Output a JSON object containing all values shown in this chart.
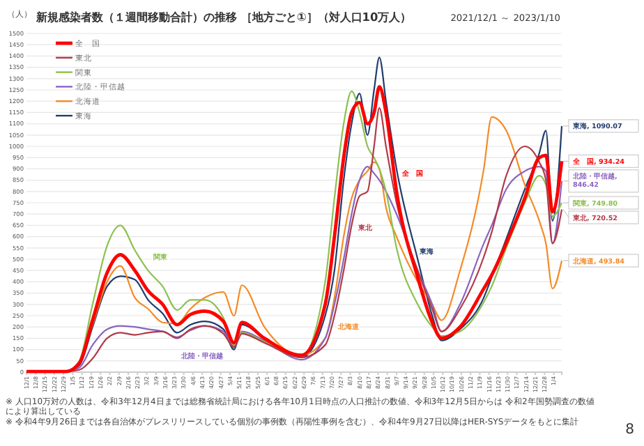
{
  "chart_data": {
    "type": "line",
    "title": "新規感染者数（１週間移動合計）の推移 ［地方ごと①］（対人口10万人）",
    "subtitle": "2021/12/1 ～ 2023/1/10",
    "ylabel": "（人）",
    "x": [
      "2021-12-01",
      "2021-12-31",
      "2022-01-10",
      "2022-01-20",
      "2022-01-31",
      "2022-02-10",
      "2022-02-21",
      "2022-03-03",
      "2022-03-14",
      "2022-03-25",
      "2022-04-04",
      "2022-04-15",
      "2022-04-29",
      "2022-05-07",
      "2022-05-13",
      "2022-05-30",
      "2022-06-27",
      "2022-07-15",
      "2022-07-22",
      "2022-07-29",
      "2022-08-04",
      "2022-08-10",
      "2022-08-16",
      "2022-08-21",
      "2022-08-25",
      "2022-08-30",
      "2022-09-07",
      "2022-09-23",
      "2022-10-04",
      "2022-10-11",
      "2022-10-25",
      "2022-11-12",
      "2022-11-18",
      "2022-11-29",
      "2022-12-13",
      "2022-12-24",
      "2022-12-29",
      "2023-01-03",
      "2023-01-10"
    ],
    "series": [
      {
        "name": "全　国",
        "color": "#ff0000",
        "values": [
          3,
          3,
          40,
          230,
          440,
          520,
          450,
          360,
          300,
          210,
          255,
          270,
          225,
          130,
          220,
          150,
          75,
          300,
          600,
          950,
          1150,
          1194,
          1100,
          1150,
          1264,
          1150,
          800,
          420,
          220,
          150,
          200,
          370,
          430,
          570,
          770,
          950,
          960,
          710,
          934.24
        ],
        "value_labels": [
          null,
          null,
          null,
          null,
          null,
          null,
          null,
          null,
          null,
          null,
          null,
          null,
          null,
          null,
          null,
          null,
          null,
          null,
          null,
          null,
          null,
          null,
          null,
          null,
          null,
          null,
          null,
          null,
          null,
          null,
          null,
          null,
          null,
          null,
          null,
          null,
          null,
          null,
          "全　国, 934.24"
        ]
      },
      {
        "name": "東北",
        "color": "#b03a48",
        "values": [
          3,
          3,
          10,
          60,
          150,
          175,
          165,
          175,
          180,
          150,
          190,
          205,
          170,
          110,
          170,
          130,
          65,
          120,
          250,
          450,
          650,
          780,
          800,
          1000,
          1170,
          1000,
          750,
          450,
          280,
          180,
          280,
          510,
          620,
          870,
          1000,
          930,
          850,
          570,
          720.52
        ],
        "value_labels": [
          null,
          null,
          null,
          null,
          null,
          null,
          null,
          null,
          null,
          null,
          null,
          null,
          null,
          null,
          null,
          null,
          null,
          null,
          null,
          null,
          null,
          null,
          null,
          null,
          null,
          null,
          null,
          null,
          null,
          null,
          null,
          null,
          null,
          null,
          null,
          null,
          null,
          null,
          "東北, 720.52"
        ]
      },
      {
        "name": "関東",
        "color": "#8dc04f",
        "values": [
          3,
          3,
          50,
          300,
          560,
          650,
          540,
          450,
          380,
          275,
          320,
          320,
          240,
          120,
          175,
          135,
          70,
          400,
          770,
          1100,
          1244,
          1150,
          1000,
          950,
          900,
          800,
          550,
          300,
          200,
          160,
          180,
          310,
          380,
          550,
          750,
          870,
          830,
          690,
          749.8
        ],
        "value_labels": [
          null,
          null,
          null,
          null,
          null,
          null,
          null,
          null,
          null,
          null,
          null,
          null,
          null,
          null,
          null,
          null,
          null,
          null,
          null,
          null,
          null,
          null,
          null,
          null,
          null,
          null,
          null,
          null,
          null,
          null,
          null,
          null,
          null,
          null,
          null,
          null,
          null,
          null,
          "関東, 749.80"
        ]
      },
      {
        "name": "北陸・甲信越",
        "color": "#8a64c0",
        "values": [
          3,
          3,
          20,
          120,
          190,
          205,
          200,
          190,
          180,
          155,
          185,
          205,
          180,
          115,
          180,
          140,
          55,
          150,
          300,
          500,
          700,
          850,
          910,
          880,
          850,
          800,
          700,
          450,
          300,
          180,
          300,
          570,
          650,
          810,
          890,
          910,
          890,
          570,
          846.42
        ],
        "value_labels": [
          null,
          null,
          null,
          null,
          null,
          null,
          null,
          null,
          null,
          null,
          null,
          null,
          null,
          null,
          null,
          null,
          null,
          null,
          null,
          null,
          null,
          null,
          null,
          null,
          null,
          null,
          null,
          null,
          null,
          null,
          null,
          null,
          null,
          null,
          null,
          null,
          null,
          null,
          "北陸・甲信越, 846.42"
        ]
      },
      {
        "name": "北海道",
        "color": "#f58a24",
        "values": [
          null,
          null,
          40,
          210,
          400,
          470,
          330,
          280,
          220,
          215,
          280,
          330,
          355,
          250,
          385,
          200,
          75,
          150,
          330,
          600,
          770,
          850,
          890,
          930,
          900,
          730,
          600,
          400,
          300,
          230,
          450,
          900,
          1130,
          1070,
          830,
          670,
          570,
          370,
          493.84
        ],
        "value_labels": [
          null,
          null,
          null,
          null,
          null,
          null,
          null,
          null,
          null,
          null,
          null,
          null,
          null,
          null,
          null,
          null,
          null,
          null,
          null,
          null,
          null,
          null,
          null,
          null,
          null,
          null,
          null,
          null,
          null,
          null,
          null,
          null,
          null,
          null,
          null,
          null,
          null,
          null,
          "北海道, 493.84"
        ]
      },
      {
        "name": "東海",
        "color": "#1f3c6e",
        "values": [
          3,
          3,
          30,
          200,
          380,
          425,
          410,
          320,
          260,
          175,
          210,
          225,
          190,
          100,
          210,
          150,
          65,
          250,
          450,
          850,
          1100,
          1234,
          1050,
          1250,
          1394,
          1200,
          900,
          500,
          250,
          140,
          190,
          330,
          420,
          590,
          810,
          970,
          1070,
          670,
          1090.07
        ],
        "value_labels": [
          null,
          null,
          null,
          null,
          null,
          null,
          null,
          null,
          null,
          null,
          null,
          null,
          null,
          null,
          null,
          null,
          null,
          null,
          null,
          null,
          null,
          null,
          null,
          null,
          null,
          null,
          null,
          null,
          null,
          null,
          null,
          null,
          null,
          null,
          null,
          null,
          null,
          null,
          "東海, 1090.07"
        ]
      }
    ],
    "annotations": [
      "全　国",
      "東北",
      "関東",
      "北陸・甲信越",
      "北海道",
      "東海",
      "※ 人口10万対の人数は、令和3年12月4日までは総務省統計局における各年10月1日時点の人口推計の数値、令和3年12月5日からは 令和2年国勢調査の数値により算出している",
      "※ 令和4年9月26日までは各自治体がプレスリリースしている個別の事例数（再陽性事例を含む）、令和4年9月27日以降はHER-SYSデータをもとに集計",
      "8"
    ],
    "xlim": [
      "2021-12-01",
      "2023-01-10"
    ],
    "xticks": [
      {
        "value": "2021-12-01",
        "label": "12/1"
      },
      {
        "value": "2021-12-08",
        "label": "12/8"
      },
      {
        "value": "2021-12-15",
        "label": "12/15"
      },
      {
        "value": "2021-12-22",
        "label": "12/22"
      },
      {
        "value": "2021-12-29",
        "label": "12/29"
      },
      {
        "value": "2022-01-05",
        "label": "1/5"
      },
      {
        "value": "2022-01-12",
        "label": "1/12"
      },
      {
        "value": "2022-01-19",
        "label": "1/19"
      },
      {
        "value": "2022-01-26",
        "label": "1/26"
      },
      {
        "value": "2022-02-02",
        "label": "2/2"
      },
      {
        "value": "2022-02-09",
        "label": "2/9"
      },
      {
        "value": "2022-02-16",
        "label": "2/16"
      },
      {
        "value": "2022-02-23",
        "label": "2/23"
      },
      {
        "value": "2022-03-02",
        "label": "3/2"
      },
      {
        "value": "2022-03-09",
        "label": "3/9"
      },
      {
        "value": "2022-03-16",
        "label": "3/16"
      },
      {
        "value": "2022-03-23",
        "label": "3/23"
      },
      {
        "value": "2022-03-30",
        "label": "3/30"
      },
      {
        "value": "2022-04-06",
        "label": "4/6"
      },
      {
        "value": "2022-04-13",
        "label": "4/13"
      },
      {
        "value": "2022-04-20",
        "label": "4/20"
      },
      {
        "value": "2022-04-27",
        "label": "4/27"
      },
      {
        "value": "2022-05-04",
        "label": "5/4"
      },
      {
        "value": "2022-05-11",
        "label": "5/11"
      },
      {
        "value": "2022-05-18",
        "label": "5/18"
      },
      {
        "value": "2022-05-25",
        "label": "5/25"
      },
      {
        "value": "2022-06-01",
        "label": "6/1"
      },
      {
        "value": "2022-06-08",
        "label": "6/8"
      },
      {
        "value": "2022-06-15",
        "label": "6/15"
      },
      {
        "value": "2022-06-22",
        "label": "6/22"
      },
      {
        "value": "2022-06-29",
        "label": "6/29"
      },
      {
        "value": "2022-07-06",
        "label": "7/6"
      },
      {
        "value": "2022-07-13",
        "label": "7/13"
      },
      {
        "value": "2022-07-20",
        "label": "7/20"
      },
      {
        "value": "2022-07-27",
        "label": "7/27"
      },
      {
        "value": "2022-08-03",
        "label": "8/3"
      },
      {
        "value": "2022-08-10",
        "label": "8/10"
      },
      {
        "value": "2022-08-17",
        "label": "8/17"
      },
      {
        "value": "2022-08-24",
        "label": "8/24"
      },
      {
        "value": "2022-08-31",
        "label": "8/31"
      },
      {
        "value": "2022-09-07",
        "label": "9/7"
      },
      {
        "value": "2022-09-14",
        "label": "9/14"
      },
      {
        "value": "2022-09-21",
        "label": "9/21"
      },
      {
        "value": "2022-09-28",
        "label": "9/28"
      },
      {
        "value": "2022-10-05",
        "label": "10/5"
      },
      {
        "value": "2022-10-12",
        "label": "10/12"
      },
      {
        "value": "2022-10-19",
        "label": "10/19"
      },
      {
        "value": "2022-10-26",
        "label": "10/26"
      },
      {
        "value": "2022-11-02",
        "label": "11/2"
      },
      {
        "value": "2022-11-09",
        "label": "11/9"
      },
      {
        "value": "2022-11-16",
        "label": "11/16"
      },
      {
        "value": "2022-11-23",
        "label": "11/23"
      },
      {
        "value": "2022-11-30",
        "label": "11/30"
      },
      {
        "value": "2022-12-07",
        "label": "12/7"
      },
      {
        "value": "2022-12-14",
        "label": "12/14"
      },
      {
        "value": "2022-12-21",
        "label": "12/21"
      },
      {
        "value": "2022-12-28",
        "label": "12/28"
      },
      {
        "value": "2023-01-04",
        "label": "1/4"
      }
    ],
    "ylim": [
      0,
      1500
    ],
    "yticks": [
      0,
      50,
      100,
      150,
      200,
      250,
      300,
      350,
      400,
      450,
      500,
      550,
      600,
      650,
      700,
      750,
      800,
      850,
      900,
      950,
      1000,
      1050,
      1100,
      1150,
      1200,
      1250,
      1300,
      1350,
      1400,
      1450,
      1500
    ],
    "grid": "y",
    "legend": "top left",
    "line_style": "solid",
    "marker": "none"
  }
}
